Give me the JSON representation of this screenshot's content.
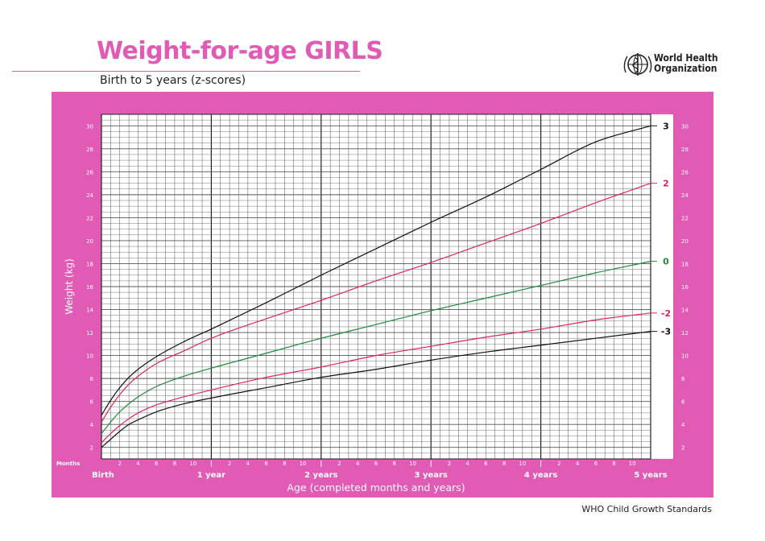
{
  "header": {
    "title": "Weight-for-age GIRLS",
    "subtitle": "Birth to 5 years (z-scores)",
    "org_name_line1": "World Health",
    "org_name_line2": "Organization",
    "footer": "WHO Child Growth Standards"
  },
  "colors": {
    "brand_pink": "#e15ab4",
    "grid": "#444444",
    "zscore_3": "#111111",
    "zscore_2": "#e0245e",
    "zscore_0": "#1f8a3a",
    "zscore_neg2": "#e0245e",
    "zscore_neg3": "#111111"
  },
  "chart_data": {
    "type": "line",
    "title": "Weight-for-age GIRLS",
    "subtitle": "Birth to 5 years (z-scores)",
    "xlabel": "Age (completed months and years)",
    "ylabel": "Weight (kg)",
    "x_units": "months",
    "xlim": [
      0,
      60
    ],
    "ylim": [
      1,
      31
    ],
    "y_ticks": [
      2,
      4,
      6,
      8,
      10,
      12,
      14,
      16,
      18,
      20,
      22,
      24,
      26,
      28,
      30
    ],
    "month_row_label": "Months",
    "month_tick_labels": [
      "2",
      "4",
      "6",
      "8",
      "10"
    ],
    "year_labels": [
      "Birth",
      "1 year",
      "2 years",
      "3 years",
      "4 years",
      "5 years"
    ],
    "grid": true,
    "series": [
      {
        "name": "3",
        "color": "#111111",
        "x": [
          0,
          1,
          2,
          3,
          4,
          6,
          9,
          12,
          18,
          24,
          30,
          36,
          42,
          48,
          54,
          60
        ],
        "y": [
          4.8,
          6.1,
          7.2,
          8.1,
          8.8,
          9.9,
          11.2,
          12.3,
          14.6,
          17.0,
          19.3,
          21.6,
          23.8,
          26.2,
          28.6,
          30.0
        ]
      },
      {
        "name": "2",
        "color": "#e0245e",
        "x": [
          0,
          1,
          2,
          3,
          4,
          6,
          9,
          12,
          18,
          24,
          30,
          36,
          42,
          48,
          54,
          60
        ],
        "y": [
          4.2,
          5.5,
          6.6,
          7.5,
          8.2,
          9.3,
          10.4,
          11.5,
          13.2,
          14.8,
          16.5,
          18.1,
          19.8,
          21.5,
          23.3,
          25.0
        ]
      },
      {
        "name": "0",
        "color": "#1f8a3a",
        "x": [
          0,
          1,
          2,
          3,
          4,
          6,
          9,
          12,
          18,
          24,
          30,
          36,
          42,
          48,
          54,
          60
        ],
        "y": [
          3.2,
          4.2,
          5.1,
          5.8,
          6.4,
          7.3,
          8.2,
          8.9,
          10.2,
          11.5,
          12.7,
          13.9,
          15.0,
          16.1,
          17.2,
          18.2
        ]
      },
      {
        "name": "-2",
        "color": "#e0245e",
        "x": [
          0,
          1,
          2,
          3,
          4,
          6,
          9,
          12,
          18,
          24,
          30,
          36,
          42,
          48,
          54,
          60
        ],
        "y": [
          2.4,
          3.2,
          3.9,
          4.5,
          5.0,
          5.7,
          6.4,
          7.0,
          8.1,
          9.0,
          10.0,
          10.8,
          11.6,
          12.3,
          13.1,
          13.7
        ]
      },
      {
        "name": "-3",
        "color": "#111111",
        "x": [
          0,
          1,
          2,
          3,
          4,
          6,
          9,
          12,
          18,
          24,
          30,
          36,
          42,
          48,
          54,
          60
        ],
        "y": [
          2.0,
          2.7,
          3.4,
          4.0,
          4.4,
          5.1,
          5.8,
          6.3,
          7.2,
          8.1,
          8.8,
          9.6,
          10.3,
          10.9,
          11.5,
          12.1
        ]
      }
    ]
  }
}
